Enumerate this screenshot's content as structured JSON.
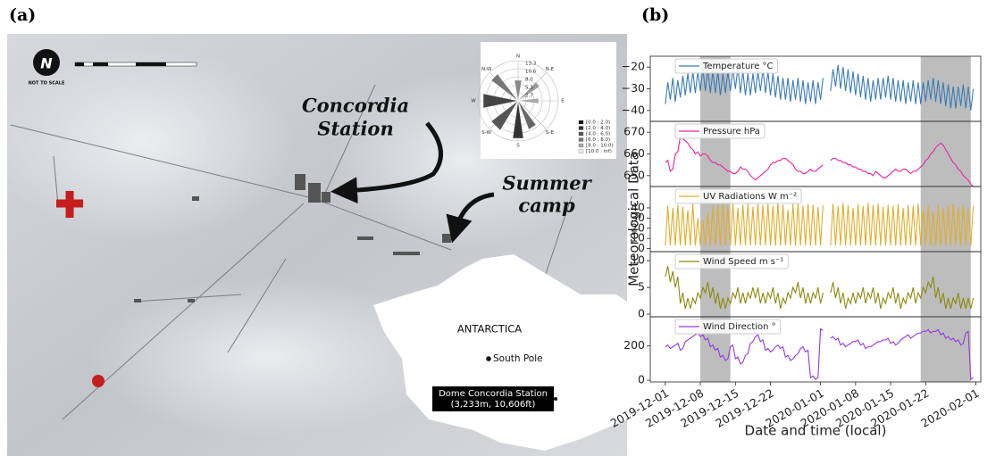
{
  "panel_labels": {
    "a": "(a)",
    "b": "(b)"
  },
  "map": {
    "north": "N",
    "not_to_scale": "NOT TO SCALE",
    "station_lines": [
      "Concordia",
      "Station"
    ],
    "camp_lines": [
      "Summer",
      "camp"
    ],
    "antarctica": "ANTARCTICA",
    "south_pole": "South Pole",
    "dome_lines": [
      "Dome Concordia Station",
      "(3,233m, 10,606ft)"
    ]
  },
  "wind_rose": {
    "directions": [
      "N",
      "N-E",
      "E",
      "S-E",
      "S",
      "S-W",
      "W",
      "N-W"
    ],
    "rings": [
      "13.3",
      "10.6",
      "8.0",
      "5.3",
      "2.7"
    ],
    "legend": [
      "[0.0 : 2.0)",
      "[2.0 : 4.0)",
      "[4.0 : 6.0)",
      "[6.0 : 8.0)",
      "[8.0 : 10.0)",
      "[10.0 : inf)"
    ]
  },
  "chart_data": {
    "type": "line",
    "xlabel": "Date and time (local)",
    "ylabel": "Meteorological Data",
    "xlim": [
      "2019-11-28",
      "2020-02-02"
    ],
    "xticks": [
      "2019-12-01",
      "2019-12-08",
      "2019-12-15",
      "2019-12-22",
      "2020-01-01",
      "2020-01-08",
      "2020-01-15",
      "2020-01-22",
      "2020-02-01"
    ],
    "shaded": [
      [
        "2019-12-08",
        "2019-12-14"
      ],
      [
        "2020-01-21",
        "2020-01-31"
      ]
    ],
    "x": [
      "2019-12-01 00:00",
      "2019-12-01 12:00",
      "2019-12-02 00:00",
      "2019-12-02 12:00",
      "2019-12-03 00:00",
      "2019-12-03 12:00",
      "2019-12-04 00:00",
      "2019-12-04 12:00",
      "2019-12-05 00:00",
      "2019-12-05 12:00",
      "2019-12-06 00:00",
      "2019-12-06 12:00",
      "2019-12-07 00:00",
      "2019-12-07 12:00",
      "2019-12-08 00:00",
      "2019-12-08 12:00",
      "2019-12-09 00:00",
      "2019-12-09 12:00",
      "2019-12-10 00:00",
      "2019-12-10 12:00",
      "2019-12-11 00:00",
      "2019-12-11 12:00",
      "2019-12-12 00:00",
      "2019-12-12 12:00",
      "2019-12-13 00:00",
      "2019-12-13 12:00",
      "2019-12-14 00:00",
      "2019-12-14 12:00",
      "2019-12-15 00:00",
      "2019-12-15 12:00",
      "2019-12-16 00:00",
      "2019-12-16 12:00",
      "2019-12-17 00:00",
      "2019-12-17 12:00",
      "2019-12-18 00:00",
      "2019-12-18 12:00",
      "2019-12-19 00:00",
      "2019-12-19 12:00",
      "2019-12-20 00:00",
      "2019-12-20 12:00",
      "2019-12-21 00:00",
      "2019-12-21 12:00",
      "2019-12-22 00:00",
      "2019-12-22 12:00",
      "2019-12-23 00:00",
      "2019-12-23 12:00",
      "2019-12-24 00:00",
      "2019-12-24 12:00",
      "2019-12-25 00:00",
      "2019-12-25 12:00",
      "2019-12-26 00:00",
      "2019-12-26 12:00",
      "2019-12-27 00:00",
      "2019-12-27 12:00",
      "2019-12-28 00:00",
      "2019-12-28 12:00",
      "2019-12-29 00:00",
      "2019-12-29 12:00",
      "2019-12-30 00:00",
      "2019-12-30 12:00",
      "2019-12-31 00:00",
      "2019-12-31 12:00",
      "2020-01-01 00:00",
      "2020-01-01 12:00",
      "2020-01-02 00:00",
      "2020-01-02 12:00",
      "2020-01-03 00:00",
      "2020-01-03 12:00",
      "2020-01-04 00:00",
      "2020-01-04 12:00",
      "2020-01-05 00:00",
      "2020-01-05 12:00",
      "2020-01-06 00:00",
      "2020-01-06 12:00",
      "2020-01-07 00:00",
      "2020-01-07 12:00",
      "2020-01-08 00:00",
      "2020-01-08 12:00",
      "2020-01-09 00:00",
      "2020-01-09 12:00",
      "2020-01-10 00:00",
      "2020-01-10 12:00",
      "2020-01-11 00:00",
      "2020-01-11 12:00",
      "2020-01-12 00:00",
      "2020-01-12 12:00",
      "2020-01-13 00:00",
      "2020-01-13 12:00",
      "2020-01-14 00:00",
      "2020-01-14 12:00",
      "2020-01-15 00:00",
      "2020-01-15 12:00",
      "2020-01-16 00:00",
      "2020-01-16 12:00",
      "2020-01-17 00:00",
      "2020-01-17 12:00",
      "2020-01-18 00:00",
      "2020-01-18 12:00",
      "2020-01-19 00:00",
      "2020-01-19 12:00",
      "2020-01-20 00:00",
      "2020-01-20 12:00",
      "2020-01-21 00:00",
      "2020-01-21 12:00",
      "2020-01-22 00:00",
      "2020-01-22 12:00",
      "2020-01-23 00:00",
      "2020-01-23 12:00",
      "2020-01-24 00:00",
      "2020-01-24 12:00",
      "2020-01-25 00:00",
      "2020-01-25 12:00",
      "2020-01-26 00:00",
      "2020-01-26 12:00",
      "2020-01-27 00:00",
      "2020-01-27 12:00",
      "2020-01-28 00:00",
      "2020-01-28 12:00",
      "2020-01-29 00:00",
      "2020-01-29 12:00",
      "2020-01-30 00:00",
      "2020-01-30 12:00",
      "2020-01-31 00:00",
      "2020-01-31 12:00"
    ],
    "panels": [
      {
        "name": "Temperature °C",
        "color": "#3b7bb4",
        "ylim": [
          -45,
          -15
        ],
        "yticks": [
          {
            "value": -40,
            "label": "−40"
          },
          {
            "value": -30,
            "label": "−30"
          },
          {
            "value": -20,
            "label": "−20"
          }
        ],
        "values": [
          -37,
          -27,
          -35,
          -25,
          -36,
          -26,
          -34,
          -24,
          -33,
          -23,
          -32,
          -22,
          -32,
          -22,
          -31,
          -21,
          -31,
          -21,
          -32,
          -22,
          -32,
          -22,
          -33,
          -23,
          -32,
          -22,
          -31,
          -21,
          -30,
          -20,
          -32,
          -22,
          -33,
          -23,
          -33,
          -23,
          -32,
          -22,
          -31,
          -21,
          -32,
          -22,
          -33,
          -23,
          -34,
          -24,
          -35,
          -25,
          -35,
          -25,
          -36,
          -26,
          -35,
          -25,
          -36,
          -26,
          -37,
          -27,
          -36,
          -26,
          -37,
          -27,
          -35,
          -25,
          null,
          null,
          -31,
          -21,
          -29,
          -19,
          -30,
          -20,
          -31,
          -21,
          -32,
          -22,
          -33,
          -23,
          -34,
          -24,
          -35,
          -25,
          -36,
          -26,
          -35,
          -25,
          -35,
          -25,
          -34,
          -24,
          -35,
          -25,
          -36,
          -26,
          -36,
          -26,
          -37,
          -27,
          -36,
          -26,
          -37,
          -27,
          -37,
          -27,
          -36,
          -26,
          -35,
          -25,
          -36,
          -26,
          -37,
          -27,
          -38,
          -28,
          -39,
          -29,
          -39,
          -29,
          -38,
          -28,
          -39,
          -29,
          -40,
          -30
        ]
      },
      {
        "name": "Pressure hPa",
        "color": "#e8249a",
        "ylim": [
          645,
          675
        ],
        "yticks": [
          650,
          660,
          670
        ],
        "values": [
          656,
          657,
          652,
          653,
          660,
          661,
          668,
          667,
          666,
          665,
          663,
          662,
          660,
          661,
          659,
          660,
          660,
          659,
          657,
          656,
          656,
          655,
          655,
          654,
          653,
          652,
          652,
          651,
          651,
          652,
          654,
          653,
          653,
          652,
          650,
          649,
          648,
          649,
          650,
          651,
          652,
          653,
          655,
          656,
          656,
          657,
          657,
          658,
          658,
          657,
          656,
          655,
          653,
          652,
          652,
          651,
          651,
          652,
          653,
          652,
          652,
          653,
          654,
          655,
          null,
          null,
          657,
          658,
          658,
          657,
          657,
          656,
          656,
          655,
          655,
          654,
          654,
          653,
          653,
          652,
          652,
          651,
          651,
          650,
          652,
          651,
          650,
          649,
          649,
          650,
          651,
          652,
          653,
          652,
          652,
          653,
          653,
          652,
          651,
          652,
          652,
          653,
          654,
          655,
          657,
          658,
          660,
          661,
          663,
          664,
          665,
          664,
          662,
          660,
          658,
          656,
          655,
          653,
          652,
          650,
          649,
          648,
          646,
          645
        ]
      },
      {
        "name": "UV Radiations W m⁻²",
        "color": "#e1ad2c",
        "ylim": [
          -3,
          61
        ],
        "yticks": [
          0,
          10,
          20,
          30,
          40
        ],
        "values": [
          3,
          42,
          3,
          40,
          3,
          43,
          3,
          41,
          3,
          38,
          3,
          44,
          3,
          30,
          3,
          28,
          3,
          35,
          3,
          42,
          3,
          43,
          3,
          44,
          3,
          42,
          3,
          45,
          3,
          40,
          3,
          43,
          3,
          44,
          3,
          41,
          3,
          45,
          3,
          43,
          3,
          44,
          3,
          42,
          3,
          45,
          3,
          43,
          3,
          38,
          3,
          44,
          3,
          45,
          3,
          42,
          3,
          44,
          3,
          43,
          3,
          41,
          3,
          43,
          null,
          null,
          3,
          44,
          3,
          42,
          3,
          45,
          3,
          43,
          3,
          40,
          3,
          44,
          3,
          42,
          3,
          45,
          3,
          43,
          3,
          44,
          3,
          41,
          3,
          43,
          3,
          42,
          3,
          44,
          3,
          40,
          3,
          43,
          3,
          42,
          3,
          44,
          3,
          38,
          3,
          42,
          3,
          36,
          3,
          43,
          3,
          40,
          3,
          42,
          3,
          44,
          3,
          41,
          3,
          43,
          3,
          40,
          3,
          42
        ]
      },
      {
        "name": "Wind Speed m s⁻¹",
        "color": "#8a8a0e",
        "ylim": [
          -0.5,
          11.7
        ],
        "yticks": [
          0,
          5,
          10
        ],
        "values": [
          7,
          9,
          6,
          8,
          5,
          7,
          2,
          4,
          1,
          3,
          1,
          3,
          2,
          4,
          3,
          5,
          4,
          6,
          3,
          5,
          2,
          4,
          1,
          3,
          1,
          3,
          2,
          4,
          3,
          5,
          2,
          4,
          2,
          4,
          3,
          5,
          3,
          5,
          2,
          4,
          2,
          4,
          3,
          5,
          2,
          4,
          1,
          3,
          2,
          4,
          3,
          5,
          4,
          6,
          3,
          5,
          2,
          4,
          2,
          4,
          3,
          5,
          2,
          4,
          null,
          null,
          4,
          6,
          3,
          5,
          2,
          4,
          1,
          3,
          2,
          4,
          2,
          4,
          3,
          5,
          2,
          4,
          3,
          5,
          2,
          4,
          1,
          3,
          2,
          4,
          3,
          5,
          2,
          4,
          1,
          3,
          2,
          4,
          3,
          5,
          2,
          4,
          3,
          5,
          4,
          6,
          5,
          7,
          3,
          5,
          2,
          4,
          1,
          3,
          1,
          3,
          2,
          4,
          1,
          3,
          1,
          3,
          1,
          3
        ]
      },
      {
        "name": "Wind Direction °",
        "color": "#9438e0",
        "ylim": [
          -10,
          370
        ],
        "yticks": [
          0,
          200
        ],
        "values": [
          195,
          205,
          185,
          195,
          205,
          215,
          175,
          185,
          225,
          235,
          245,
          255,
          265,
          275,
          255,
          265,
          235,
          245,
          195,
          205,
          175,
          185,
          135,
          145,
          115,
          125,
          195,
          205,
          125,
          135,
          95,
          105,
          145,
          155,
          215,
          225,
          255,
          265,
          225,
          235,
          175,
          185,
          165,
          175,
          195,
          205,
          185,
          195,
          135,
          145,
          115,
          125,
          145,
          155,
          185,
          195,
          165,
          175,
          15,
          25,
          5,
          15,
          300,
          290,
          null,
          null,
          245,
          255,
          235,
          245,
          205,
          215,
          195,
          205,
          215,
          225,
          225,
          235,
          205,
          215,
          185,
          195,
          195,
          205,
          215,
          225,
          225,
          235,
          235,
          245,
          215,
          225,
          205,
          215,
          235,
          245,
          255,
          265,
          245,
          255,
          265,
          275,
          275,
          285,
          285,
          295,
          275,
          285,
          285,
          295,
          265,
          275,
          245,
          255,
          235,
          245,
          225,
          235,
          205,
          215,
          275,
          285,
          5,
          15
        ]
      }
    ]
  }
}
